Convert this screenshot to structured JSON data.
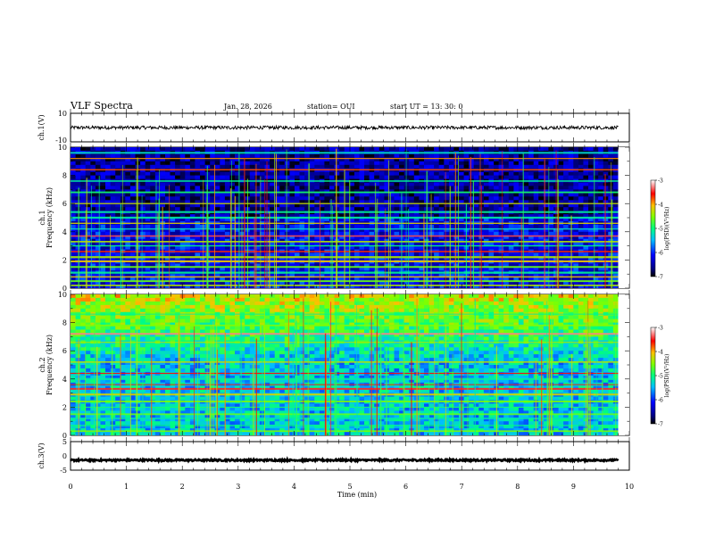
{
  "header": {
    "title": "VLF Spectra",
    "date": "Jan. 28, 2026",
    "station": "station= OUI",
    "start": "start  UT  =   13: 30: 0"
  },
  "chart_data": [
    {
      "type": "line",
      "name": "ch1-waveform",
      "ylabel": "ch.1(V)",
      "ylim": [
        -10,
        10
      ],
      "yticks": [
        "10",
        "-10"
      ],
      "xlim": [
        0,
        10
      ],
      "series": [
        {
          "x_range": [
            0,
            9.8
          ],
          "y_mean": 0,
          "y_noise": 1.2
        }
      ]
    },
    {
      "type": "heatmap",
      "name": "ch1-spectrogram",
      "ylabel": "ch.1",
      "ylabel2": "Frequency  (kHz)",
      "ylim": [
        0,
        10
      ],
      "yticks": [
        "0",
        "2",
        "4",
        "6",
        "8",
        "10"
      ],
      "xlim": [
        0,
        10
      ],
      "data_xlim": [
        0,
        9.8
      ],
      "colorbar": {
        "label": "log(PSD)(V²/Hz)",
        "range": [
          -7,
          -3
        ],
        "ticks": [
          "-3",
          "-4",
          "-5",
          "-6",
          "-7"
        ]
      },
      "features": {
        "background_level": -6.3,
        "lines_kHz": [
          0.2,
          0.5,
          0.8,
          1.1,
          1.5,
          1.9,
          2.2,
          2.6,
          3.0,
          3.3,
          3.7,
          4.2,
          4.6,
          5.0,
          5.4,
          6.0,
          6.8,
          7.6,
          8.4,
          9.2,
          9.6
        ]
      }
    },
    {
      "type": "heatmap",
      "name": "ch2-spectrogram",
      "ylabel": "ch.2",
      "ylabel2": "Frequency  (kHz)",
      "ylim": [
        0,
        10
      ],
      "yticks": [
        "0",
        "2",
        "4",
        "6",
        "8",
        "10"
      ],
      "xlim": [
        0,
        10
      ],
      "data_xlim": [
        0,
        9.8
      ],
      "colorbar": {
        "label": "log(PSD)(V²/Hz)",
        "range": [
          -7,
          -3
        ],
        "ticks": [
          "-3",
          "-4",
          "-5",
          "-6",
          "-7"
        ]
      },
      "features": {
        "background_level": -5.5,
        "lines_kHz": [
          0.3,
          0.7,
          1.2,
          1.5,
          2.0,
          2.4,
          2.9,
          3.3,
          3.6,
          4.0,
          4.4,
          5.2,
          6.6,
          7.2,
          7.8,
          8.6
        ]
      }
    },
    {
      "type": "line",
      "name": "ch3-waveform",
      "ylabel": "ch.3(V)",
      "ylim": [
        -5,
        5
      ],
      "yticks": [
        "5",
        "0",
        "-5"
      ],
      "xlabel": "Time  (min)",
      "xlim": [
        0,
        10
      ],
      "xticks": [
        "0",
        "1",
        "2",
        "3",
        "4",
        "5",
        "6",
        "7",
        "8",
        "9",
        "10"
      ],
      "series": [
        {
          "x_range": [
            0,
            9.8
          ],
          "y_mean": -1.5,
          "y_noise": 0.3
        }
      ]
    }
  ]
}
